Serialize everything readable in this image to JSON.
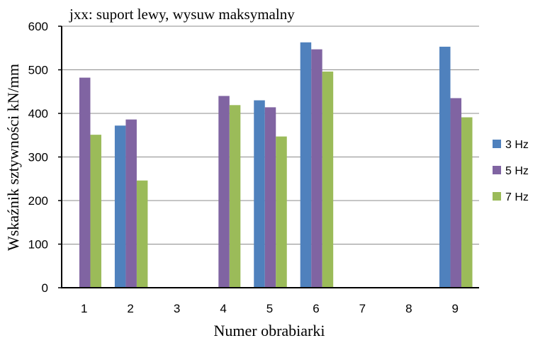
{
  "chart_data": {
    "type": "bar",
    "title": "jxx: suport lewy, wysuw maksymalny",
    "xlabel": "Numer obrabiarki",
    "ylabel": "Wskaźnik sztywności  kN/mm",
    "categories": [
      "1",
      "2",
      "3",
      "4",
      "5",
      "6",
      "7",
      "8",
      "9"
    ],
    "ylim": [
      0,
      600
    ],
    "yticks": [
      "0",
      "100",
      "200",
      "300",
      "400",
      "500",
      "600"
    ],
    "grid": true,
    "legend_position": "right",
    "series": [
      {
        "name": "3 Hz",
        "color": "#4F81BD",
        "values": [
          null,
          372,
          null,
          null,
          430,
          563,
          null,
          null,
          553
        ]
      },
      {
        "name": "5 Hz",
        "color": "#8064A2",
        "values": [
          482,
          386,
          null,
          440,
          414,
          547,
          null,
          null,
          435
        ]
      },
      {
        "name": "7 Hz",
        "color": "#9BBB59",
        "values": [
          351,
          246,
          null,
          419,
          347,
          496,
          null,
          null,
          391
        ]
      }
    ]
  }
}
